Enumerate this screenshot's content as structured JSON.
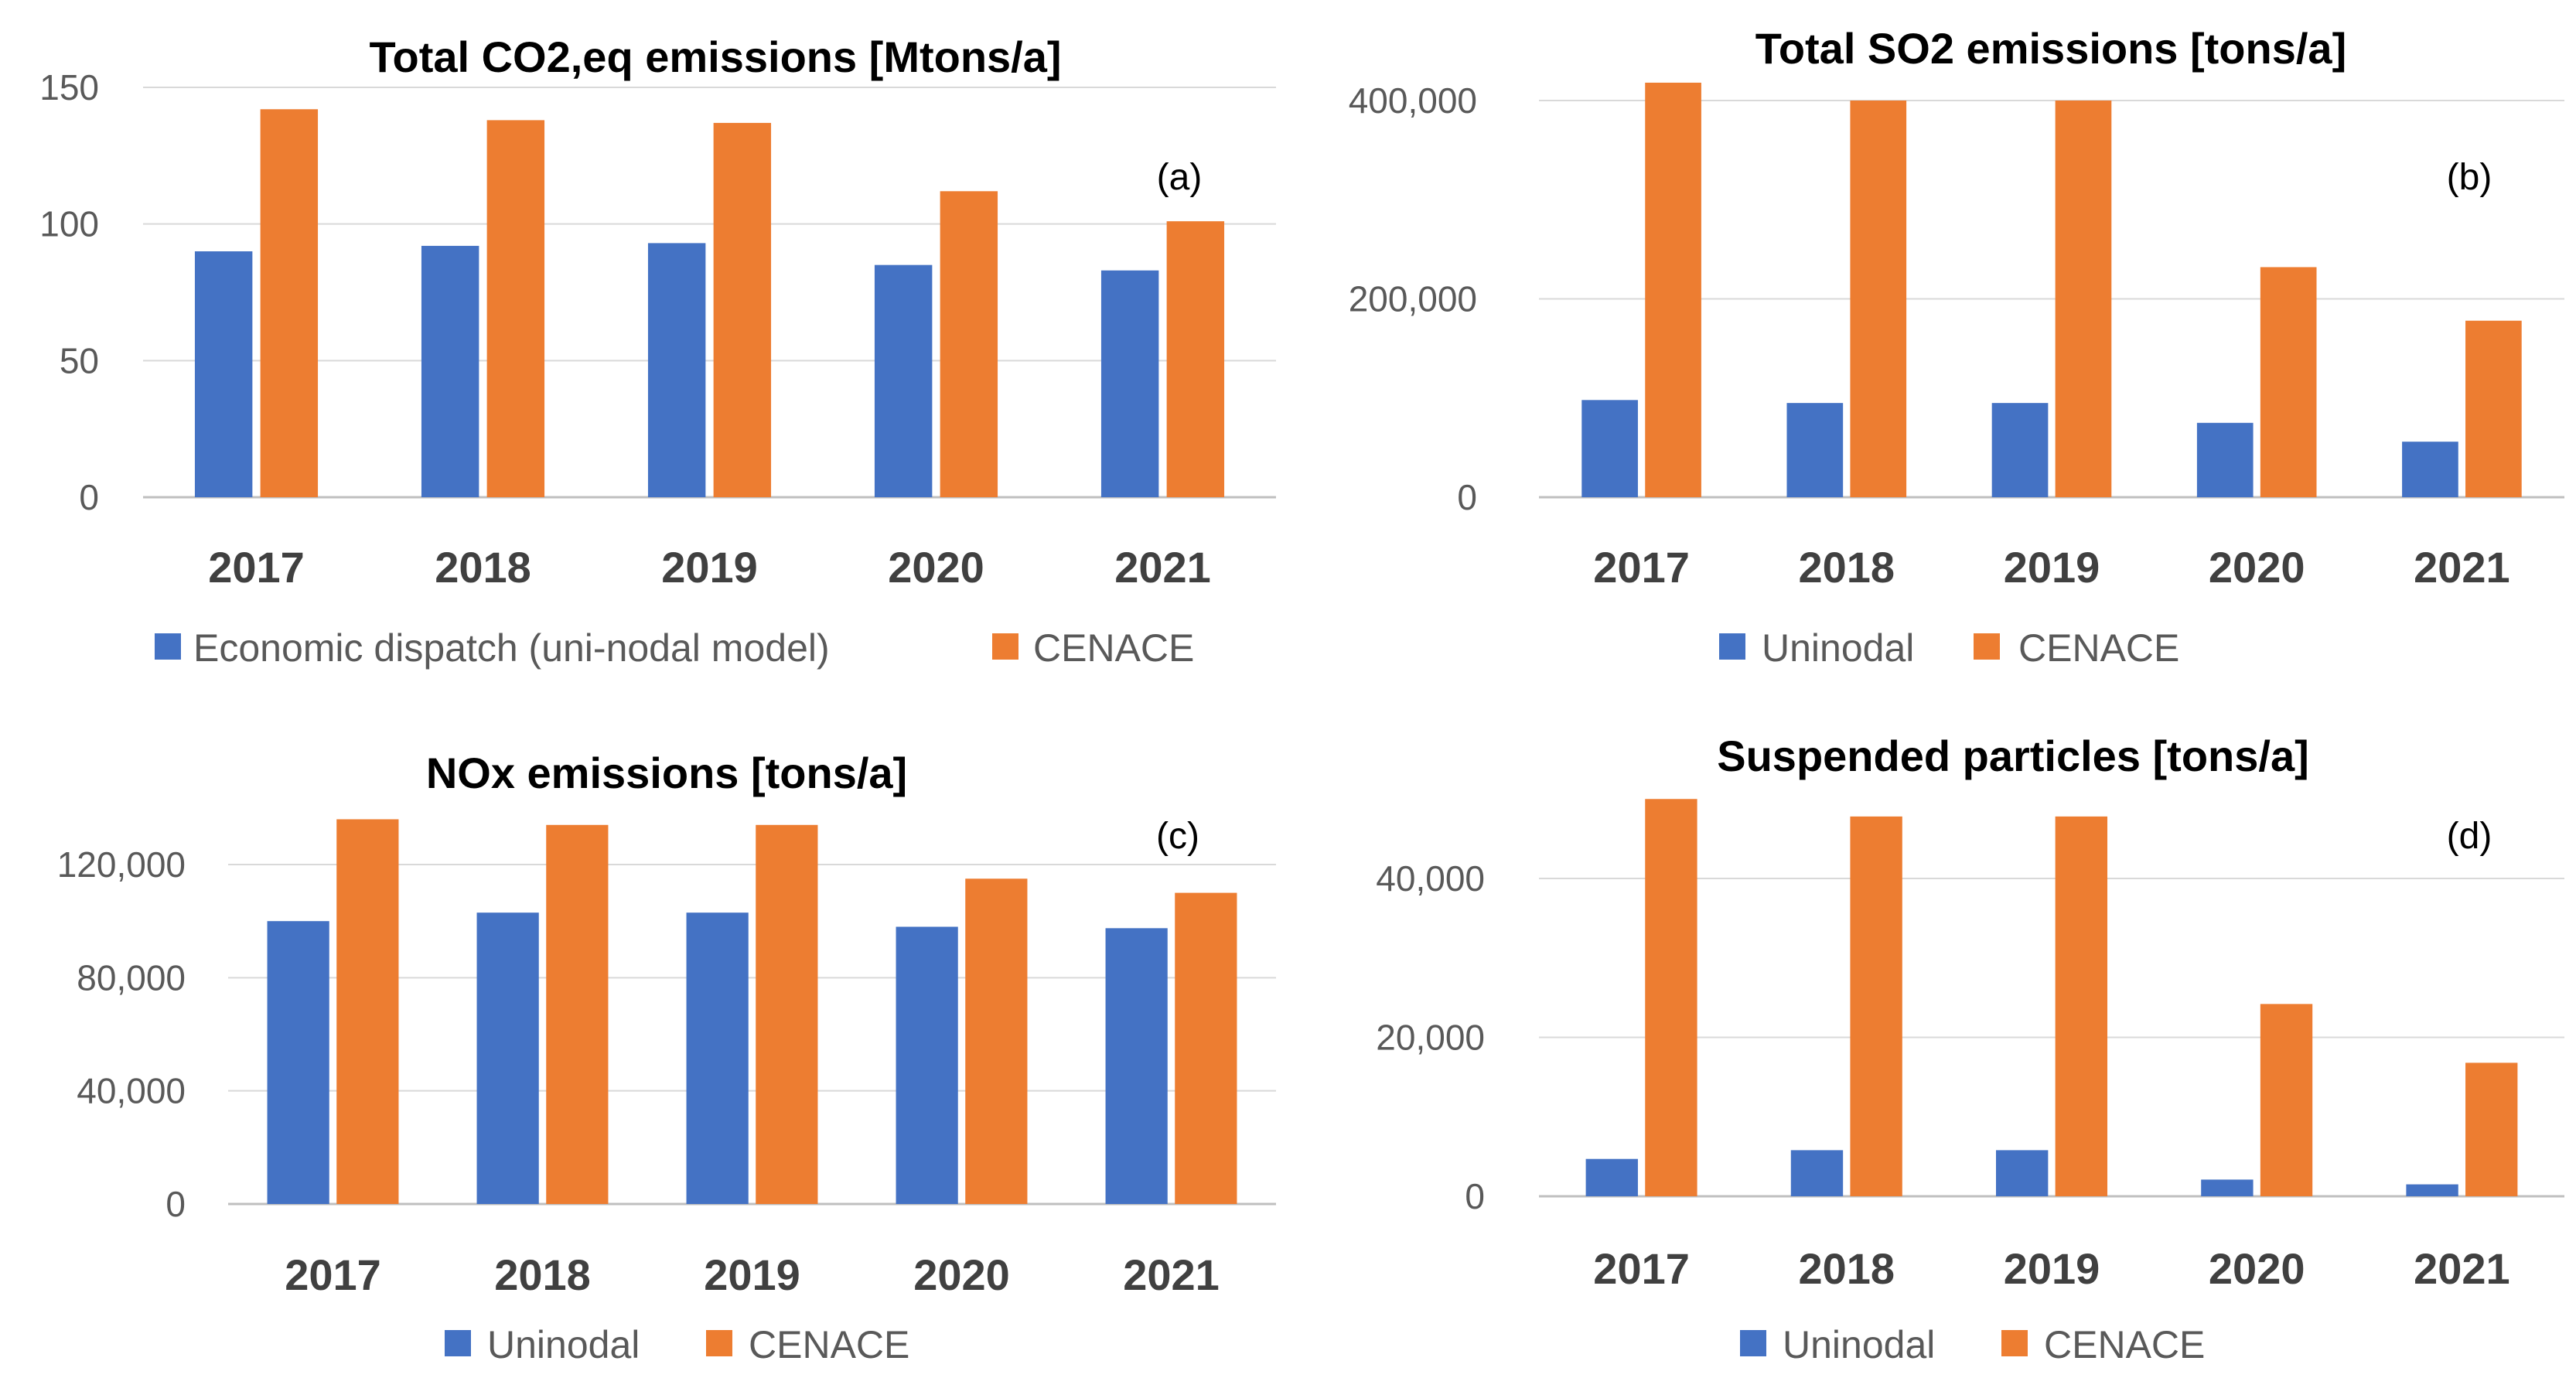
{
  "colors": {
    "series_a": "#4472c4",
    "series_b": "#ed7d31"
  },
  "chart_data": [
    {
      "type": "bar",
      "title": "Total CO2,eq emissions [Mtons/a]",
      "panel_label": "(a)",
      "categories": [
        "2017",
        "2018",
        "2019",
        "2020",
        "2021"
      ],
      "ylim": [
        0,
        150
      ],
      "yticks": [
        0,
        50,
        100,
        150
      ],
      "ytick_labels": [
        "0",
        "50",
        "100",
        "150"
      ],
      "series": [
        {
          "name": "Economic dispatch (uni-nodal model)",
          "values": [
            90,
            92,
            93,
            85,
            83
          ]
        },
        {
          "name": "CENACE",
          "values": [
            142,
            138,
            137,
            112,
            101
          ]
        }
      ],
      "grid": true,
      "legend": "bottom"
    },
    {
      "type": "bar",
      "title": "Total SO2 emissions [tons/a]",
      "panel_label": "(b)",
      "categories": [
        "2017",
        "2018",
        "2019",
        "2020",
        "2021"
      ],
      "ylim": [
        0,
        400000
      ],
      "yticks": [
        0,
        200000,
        400000
      ],
      "ytick_labels": [
        "0",
        "200,000",
        "400,000"
      ],
      "series": [
        {
          "name": "Uninodal",
          "values": [
            98000,
            95000,
            95000,
            75000,
            56000
          ]
        },
        {
          "name": "CENACE",
          "values": [
            418000,
            400000,
            400000,
            232000,
            178000
          ]
        }
      ],
      "grid": true,
      "legend": "bottom"
    },
    {
      "type": "bar",
      "title": "NOx emissions  [tons/a]",
      "panel_label": "(c)",
      "categories": [
        "2017",
        "2018",
        "2019",
        "2020",
        "2021"
      ],
      "ylim": [
        0,
        120000
      ],
      "yticks": [
        0,
        40000,
        80000,
        120000
      ],
      "ytick_labels": [
        "0",
        "40,000",
        "80,000",
        "120,000"
      ],
      "series": [
        {
          "name": "Uninodal",
          "values": [
            100000,
            103000,
            103000,
            98000,
            97500
          ]
        },
        {
          "name": "CENACE",
          "values": [
            136000,
            134000,
            134000,
            115000,
            110000
          ]
        }
      ],
      "grid": true,
      "legend": "bottom"
    },
    {
      "type": "bar",
      "title": "Suspended particles [tons/a]",
      "panel_label": "(d)",
      "categories": [
        "2017",
        "2018",
        "2019",
        "2020",
        "2021"
      ],
      "ylim": [
        0,
        40000
      ],
      "yticks": [
        0,
        20000,
        40000
      ],
      "ytick_labels": [
        "0",
        "20,000",
        "40,000"
      ],
      "series": [
        {
          "name": "Uninodal",
          "values": [
            4700,
            5800,
            5800,
            2100,
            1500
          ]
        },
        {
          "name": "CENACE",
          "values": [
            50000,
            47800,
            47800,
            24200,
            16800
          ]
        }
      ],
      "grid": true,
      "legend": "bottom"
    }
  ]
}
